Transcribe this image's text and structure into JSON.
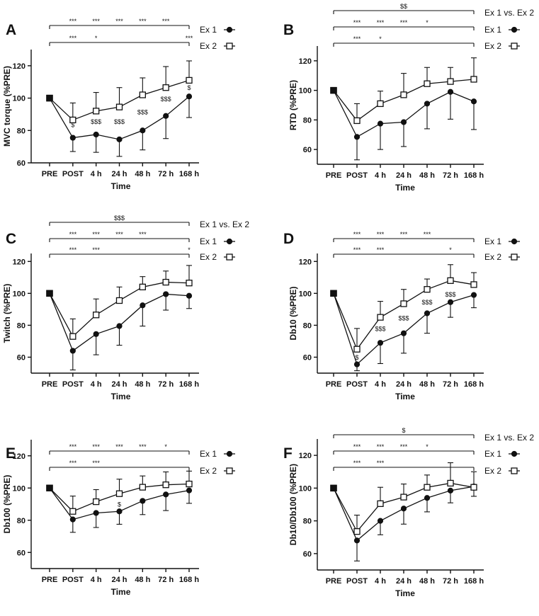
{
  "figure": {
    "x_categories": [
      "PRE",
      "POST",
      "4 h",
      "24 h",
      "48 h",
      "72 h",
      "168 h"
    ],
    "legend_markers": {
      "ex1": "filled-circle",
      "ex2": "open-square",
      "pre": "filled-square"
    },
    "colors": {
      "ink": "#111111",
      "background": "#ffffff"
    }
  },
  "chart_data": [
    {
      "panel": "A",
      "type": "line",
      "xlabel": "Time",
      "ylabel": "MVC torque (%PRE)",
      "ylim": [
        60,
        130
      ],
      "yticks": [
        60,
        80,
        100,
        120
      ],
      "series": [
        {
          "name": "Ex 1",
          "values": [
            100,
            75.5,
            77.5,
            74.5,
            80,
            89,
            101
          ],
          "error": [
            0,
            8.5,
            11,
            10.5,
            12,
            14,
            13
          ]
        },
        {
          "name": "Ex 2",
          "values": [
            100,
            86.5,
            92,
            94.5,
            102,
            106.5,
            111
          ],
          "error": [
            0,
            10.5,
            11.5,
            12,
            10.5,
            13,
            12
          ]
        }
      ],
      "brackets": [
        {
          "label": "Ex 1",
          "marks": {
            "POST": "***",
            "4 h": "***",
            "24 h": "***",
            "48 h": "***",
            "72 h": "***"
          }
        },
        {
          "label": "Ex 2",
          "marks": {
            "POST": "***",
            "4 h": "*",
            "168 h": "***"
          }
        }
      ],
      "annotations": [
        {
          "x": "POST",
          "y": 82,
          "text": "$"
        },
        {
          "x": "4 h",
          "y": 84,
          "text": "$$$"
        },
        {
          "x": "24 h",
          "y": 84,
          "text": "$$$"
        },
        {
          "x": "48 h",
          "y": 90,
          "text": "$$$"
        },
        {
          "x": "72 h",
          "y": 98,
          "text": "$$$"
        },
        {
          "x": "168 h",
          "y": 105,
          "text": "$"
        }
      ]
    },
    {
      "panel": "B",
      "type": "line",
      "xlabel": "Time",
      "ylabel": "RTD (%PRE)",
      "ylim": [
        50,
        130
      ],
      "yticks": [
        60,
        80,
        100,
        120
      ],
      "series": [
        {
          "name": "Ex 1",
          "values": [
            100,
            68.5,
            77.5,
            78.5,
            91,
            99,
            92.5
          ],
          "error": [
            0,
            15.5,
            17.5,
            16.5,
            17,
            18.5,
            19
          ]
        },
        {
          "name": "Ex 2",
          "values": [
            100,
            79.5,
            91,
            97,
            104.5,
            106,
            107.5
          ],
          "error": [
            0,
            11.5,
            8.5,
            14.5,
            11,
            9.5,
            14.5
          ]
        }
      ],
      "brackets": [
        {
          "label": "Ex 1 vs. Ex 2",
          "marks": {
            "24 h": "$$"
          }
        },
        {
          "label": "Ex 1",
          "marks": {
            "POST": "***",
            "4 h": "***",
            "24 h": "***",
            "48 h": "*"
          }
        },
        {
          "label": "Ex 2",
          "marks": {
            "POST": "***",
            "4 h": "*"
          }
        }
      ],
      "annotations": []
    },
    {
      "panel": "C",
      "type": "line",
      "xlabel": "Time",
      "ylabel": "Twitch (%PRE)",
      "ylim": [
        50,
        125
      ],
      "yticks": [
        60,
        80,
        100,
        120
      ],
      "series": [
        {
          "name": "Ex 1",
          "values": [
            100,
            64,
            74.5,
            79.5,
            92.5,
            99.5,
            98.5
          ],
          "error": [
            0,
            12,
            13,
            12,
            13,
            10,
            8
          ]
        },
        {
          "name": "Ex 2",
          "values": [
            100,
            73,
            86.5,
            95.5,
            104,
            107,
            106.5
          ],
          "error": [
            0,
            11,
            10,
            8.5,
            6.5,
            7,
            11
          ]
        }
      ],
      "brackets": [
        {
          "label": "Ex 1 vs. Ex 2",
          "marks": {
            "24 h": "$$$"
          }
        },
        {
          "label": "Ex 1",
          "marks": {
            "POST": "***",
            "4 h": "***",
            "24 h": "***",
            "48 h": "***"
          }
        },
        {
          "label": "Ex 2",
          "marks": {
            "POST": "***",
            "4 h": "***",
            "168 h": "*"
          }
        }
      ],
      "annotations": []
    },
    {
      "panel": "D",
      "type": "line",
      "xlabel": "Time",
      "ylabel": "Db10 (%PRE)",
      "ylim": [
        50,
        125
      ],
      "yticks": [
        60,
        80,
        100,
        120
      ],
      "series": [
        {
          "name": "Ex 1",
          "values": [
            100,
            55.5,
            69,
            75,
            87.5,
            94.5,
            99
          ],
          "error": [
            0,
            4,
            13,
            12.5,
            12.5,
            9.5,
            8
          ]
        },
        {
          "name": "Ex 2",
          "values": [
            100,
            65,
            85,
            93.5,
            102.5,
            108,
            105.5
          ],
          "error": [
            0,
            13,
            10,
            9,
            6.5,
            10,
            7.5
          ]
        }
      ],
      "brackets": [
        {
          "label": "Ex 1",
          "marks": {
            "POST": "***",
            "4 h": "***",
            "24 h": "***",
            "48 h": "***"
          }
        },
        {
          "label": "Ex 2",
          "marks": {
            "POST": "***",
            "4 h": "***",
            "72 h": "*"
          }
        }
      ],
      "annotations": [
        {
          "x": "POST",
          "y": 58.5,
          "text": "$"
        },
        {
          "x": "4 h",
          "y": 76.5,
          "text": "$$$"
        },
        {
          "x": "24 h",
          "y": 83,
          "text": "$$$"
        },
        {
          "x": "48 h",
          "y": 93,
          "text": "$$$"
        },
        {
          "x": "72 h",
          "y": 98,
          "text": "$$$"
        }
      ]
    },
    {
      "panel": "E",
      "type": "line",
      "xlabel": "Time",
      "ylabel": "Db100 (%PRE)",
      "ylim": [
        50,
        130
      ],
      "yticks": [
        60,
        80,
        100,
        120
      ],
      "series": [
        {
          "name": "Ex 1",
          "values": [
            100,
            80.5,
            84.5,
            85.5,
            92,
            96,
            98.5
          ],
          "error": [
            0,
            8,
            9,
            8,
            8.5,
            10,
            8
          ]
        },
        {
          "name": "Ex 2",
          "values": [
            100,
            85.5,
            91.5,
            96.5,
            100.5,
            102,
            102.5
          ],
          "error": [
            0,
            9.5,
            7.5,
            9,
            7,
            8,
            8
          ]
        }
      ],
      "brackets": [
        {
          "label": "Ex 1",
          "marks": {
            "POST": "***",
            "4 h": "***",
            "24 h": "***",
            "48 h": "***",
            "72 h": "*"
          }
        },
        {
          "label": "Ex 2",
          "marks": {
            "POST": "***",
            "4 h": "***"
          }
        }
      ],
      "annotations": [
        {
          "x": "24 h",
          "y": 88.5,
          "text": "$"
        }
      ]
    },
    {
      "panel": "F",
      "type": "line",
      "xlabel": "Time",
      "ylabel": "Db10/Db100 (%PRE)",
      "ylim": [
        50,
        130
      ],
      "yticks": [
        60,
        80,
        100,
        120
      ],
      "series": [
        {
          "name": "Ex 1",
          "values": [
            100,
            68,
            80,
            87.5,
            94,
            98.5,
            101
          ],
          "error": [
            0,
            12.5,
            8.5,
            9.5,
            8.5,
            7.5,
            6
          ]
        },
        {
          "name": "Ex 2",
          "values": [
            100,
            73.5,
            90.5,
            94.5,
            100.5,
            103,
            100.5
          ],
          "error": [
            0,
            10,
            10,
            8,
            7.5,
            12.5,
            9.5
          ]
        }
      ],
      "brackets": [
        {
          "label": "Ex 1 vs. Ex 2",
          "marks": {
            "24 h": "$"
          }
        },
        {
          "label": "Ex 1",
          "marks": {
            "POST": "***",
            "4 h": "***",
            "24 h": "***",
            "48 h": "*"
          }
        },
        {
          "label": "Ex 2",
          "marks": {
            "POST": "***",
            "4 h": "***"
          }
        }
      ],
      "annotations": []
    }
  ]
}
